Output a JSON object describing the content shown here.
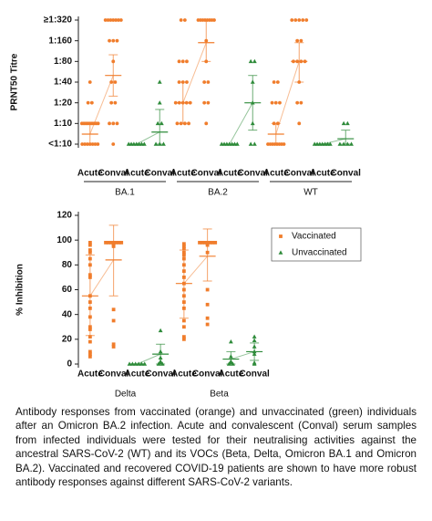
{
  "chart_data": [
    {
      "type": "dot",
      "y_label": "PRNT50 Titre",
      "log_scale": true,
      "ylim": [
        5,
        320
      ],
      "yticks": [
        {
          "value": 5,
          "label": "<1:10"
        },
        {
          "value": 10,
          "label": "1:10"
        },
        {
          "value": 20,
          "label": "1:20"
        },
        {
          "value": 40,
          "label": "1:40"
        },
        {
          "value": 80,
          "label": "1:80"
        },
        {
          "value": 160,
          "label": "1:160"
        },
        {
          "value": 320,
          "label": "≥1:320"
        }
      ],
      "categories": [
        "Acute",
        "Conval",
        "Acute",
        "Conval",
        "Acute",
        "Conval",
        "Acute",
        "Conval",
        "Acute",
        "Conval",
        "Acute",
        "Conval"
      ],
      "group_labels": [
        "BA.1",
        "BA.2",
        "WT"
      ],
      "series": [
        {
          "color": "#f07d2c",
          "marker": "circle",
          "values": [
            [
              5,
              5,
              5,
              5,
              5,
              5,
              5,
              10,
              10,
              10,
              10,
              10,
              10,
              10,
              10,
              10,
              20,
              20,
              40
            ],
            [
              320,
              320,
              320,
              320,
              320,
              320,
              320,
              160,
              160,
              160,
              80,
              40,
              40,
              20,
              20,
              10,
              10,
              10,
              5
            ],
            null,
            null,
            [
              320,
              320,
              80,
              80,
              80,
              40,
              40,
              40,
              20,
              20,
              20,
              20,
              20,
              10,
              10,
              10,
              10
            ],
            [
              320,
              320,
              320,
              320,
              320,
              320,
              320,
              320,
              160,
              80,
              40,
              40,
              20,
              20,
              10
            ],
            null,
            null,
            [
              40,
              40,
              20,
              20,
              20,
              10,
              10,
              5,
              5,
              5,
              5,
              5,
              5,
              5,
              5
            ],
            [
              320,
              320,
              320,
              320,
              320,
              160,
              160,
              80,
              80,
              80,
              80,
              40,
              20,
              20,
              10
            ],
            null,
            null
          ],
          "means": [
            7,
            50,
            null,
            null,
            20,
            150,
            null,
            null,
            7,
            80,
            null,
            null
          ],
          "ranges": [
            [
              5,
              10
            ],
            [
              25,
              100
            ],
            null,
            null,
            [
              10,
              40
            ],
            [
              80,
              320
            ],
            null,
            null,
            [
              5,
              10
            ],
            [
              40,
              150
            ],
            null,
            null
          ]
        },
        {
          "color": "#2e8b3a",
          "marker": "triangle",
          "values": [
            null,
            null,
            [
              5,
              5,
              5,
              5,
              5,
              5,
              5
            ],
            [
              40,
              20,
              10,
              10,
              5,
              5,
              5
            ],
            null,
            null,
            [
              5,
              5,
              5,
              5,
              5,
              5,
              5
            ],
            [
              80,
              80,
              40,
              20,
              10,
              5,
              5
            ],
            null,
            null,
            [
              5,
              5,
              5,
              5,
              5,
              5,
              5
            ],
            [
              10,
              10,
              5,
              5,
              5,
              5
            ]
          ],
          "means": [
            null,
            null,
            5,
            7.5,
            null,
            null,
            5,
            20,
            null,
            null,
            5,
            6
          ],
          "ranges": [
            null,
            null,
            [
              5,
              5
            ],
            [
              5,
              16
            ],
            null,
            null,
            [
              5,
              5
            ],
            [
              8,
              50
            ],
            null,
            null,
            [
              5,
              5
            ],
            [
              5,
              8
            ]
          ]
        }
      ]
    },
    {
      "type": "dot",
      "y_label": "% Inhibition",
      "log_scale": false,
      "ylim": [
        0,
        120
      ],
      "yticks": [
        0,
        20,
        40,
        60,
        80,
        100,
        120
      ],
      "categories": [
        "Acute",
        "Conval",
        "Acute",
        "Conval",
        "Acute",
        "Conval",
        "Acute",
        "Conval"
      ],
      "group_labels": [
        "Delta",
        "Beta"
      ],
      "legend": "upper right",
      "series": [
        {
          "name": "Vaccinated",
          "color": "#f07d2c",
          "marker": "square",
          "values": [
            [
              98,
              96,
              92,
              90,
              85,
              80,
              72,
              70,
              55,
              50,
              45,
              38,
              30,
              28,
              22,
              18,
              10,
              8,
              6
            ],
            [
              98,
              98,
              98,
              98,
              98,
              98,
              98,
              97,
              96,
              95,
              44,
              35,
              16,
              14
            ],
            null,
            null,
            [
              97,
              95,
              93,
              90,
              88,
              85,
              80,
              75,
              70,
              65,
              60,
              55,
              50,
              45,
              35,
              30,
              22,
              20
            ],
            [
              98,
              98,
              98,
              98,
              98,
              98,
              98,
              97,
              96,
              90,
              60,
              48,
              37,
              32
            ],
            null,
            null
          ],
          "means": [
            55,
            84,
            null,
            null,
            65,
            87,
            null,
            null
          ],
          "ranges": [
            [
              23,
              88
            ],
            [
              55,
              112
            ],
            null,
            null,
            [
              37,
              92
            ],
            [
              67,
              109
            ],
            null,
            null
          ]
        },
        {
          "name": "Unvaccinated",
          "color": "#2e8b3a",
          "marker": "triangle",
          "values": [
            null,
            null,
            [
              0,
              0,
              0,
              0,
              0,
              0
            ],
            [
              27,
              10,
              5,
              2,
              1,
              0,
              0
            ],
            null,
            null,
            [
              18,
              6,
              2,
              1,
              0,
              0
            ],
            [
              22,
              19,
              14,
              10,
              8,
              1,
              0
            ]
          ],
          "means": [
            null,
            null,
            0,
            8,
            null,
            null,
            4,
            10
          ],
          "ranges": [
            null,
            null,
            [
              0,
              0
            ],
            [
              0,
              16
            ],
            null,
            null,
            [
              0,
              10
            ],
            [
              3,
              17
            ]
          ]
        }
      ]
    }
  ],
  "caption": "Antibody responses from vaccinated (orange) and unvaccinated (green) individuals after an Omicron BA.2 infection. Acute and convalescent (Conval) serum samples from infected individuals were tested for their neutralising activities against the ancestral SARS-CoV-2 (WT) and its VOCs (Beta, Delta, Omicron BA.1 and Omicron BA.2). Vaccinated and recovered COVID-19 patients are shown to have more robust antibody responses against different SARS-CoV-2 variants."
}
